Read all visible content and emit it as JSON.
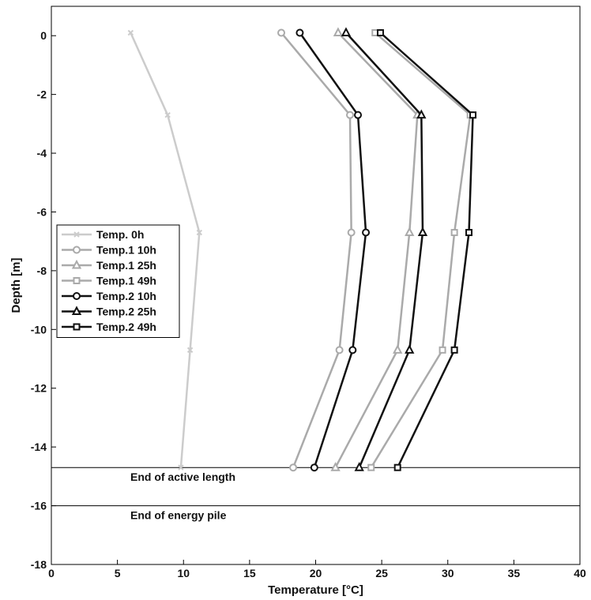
{
  "chart_data": {
    "type": "line",
    "xlabel": "Temperature [°C]",
    "ylabel": "Depth [m]",
    "xlim": [
      0,
      40
    ],
    "ylim": [
      -18,
      1
    ],
    "xticks": [
      0,
      5,
      10,
      15,
      20,
      25,
      30,
      35,
      40
    ],
    "yticks": [
      0,
      -2,
      -4,
      -6,
      -8,
      -10,
      -12,
      -14,
      -16,
      -18
    ],
    "grid": false,
    "legend_position": "middle-left",
    "depths": [
      0.1,
      -2.7,
      -6.7,
      -10.7,
      -14.7
    ],
    "series": [
      {
        "name": "Temp. 0h",
        "color": "#cccccc",
        "marker": "x",
        "values": [
          6.0,
          8.8,
          11.2,
          10.5,
          9.8
        ]
      },
      {
        "name": "Temp.1 10h",
        "color": "#aaaaaa",
        "marker": "circle",
        "values": [
          17.4,
          22.6,
          22.7,
          21.8,
          18.3
        ]
      },
      {
        "name": "Temp.1 25h",
        "color": "#aaaaaa",
        "marker": "triangle",
        "values": [
          21.7,
          27.7,
          27.1,
          26.2,
          21.5
        ]
      },
      {
        "name": "Temp.1 49h",
        "color": "#aaaaaa",
        "marker": "square",
        "values": [
          24.5,
          31.7,
          30.5,
          29.6,
          24.2
        ]
      },
      {
        "name": "Temp.2 10h",
        "color": "#111111",
        "marker": "circle",
        "values": [
          18.8,
          23.2,
          23.8,
          22.8,
          19.9
        ]
      },
      {
        "name": "Temp.2 25h",
        "color": "#111111",
        "marker": "triangle",
        "values": [
          22.3,
          28.0,
          28.1,
          27.1,
          23.3
        ]
      },
      {
        "name": "Temp.2 49h",
        "color": "#111111",
        "marker": "square",
        "values": [
          24.9,
          31.9,
          31.6,
          30.5,
          26.2
        ]
      }
    ],
    "reference_lines": [
      {
        "y": -14.7,
        "label": "End of active length"
      },
      {
        "y": -16.0,
        "label": "End of energy pile"
      }
    ]
  }
}
